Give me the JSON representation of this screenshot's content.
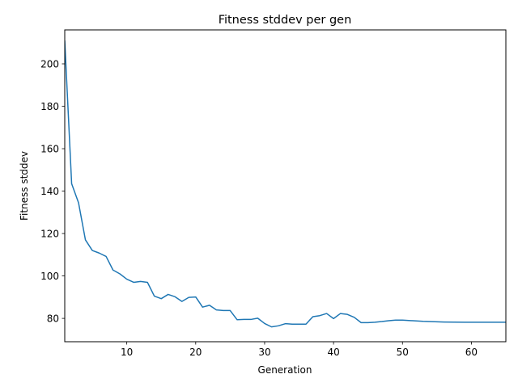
{
  "chart_data": {
    "type": "line",
    "title": "Fitness stddev per gen",
    "xlabel": "Generation",
    "ylabel": "Fitness stddev",
    "xlim": [
      1,
      65
    ],
    "ylim": [
      69,
      216
    ],
    "xticks": [
      10,
      20,
      30,
      40,
      50,
      60
    ],
    "yticks": [
      80,
      100,
      120,
      140,
      160,
      180,
      200
    ],
    "grid": false,
    "series": [
      {
        "color": "#1f77b4",
        "x": [
          1,
          2,
          3,
          4,
          5,
          6,
          7,
          8,
          9,
          10,
          11,
          12,
          13,
          14,
          15,
          16,
          17,
          18,
          19,
          20,
          21,
          22,
          23,
          24,
          25,
          26,
          27,
          28,
          29,
          30,
          31,
          32,
          33,
          34,
          35,
          36,
          37,
          38,
          39,
          40,
          41,
          42,
          43,
          44,
          45,
          46,
          47,
          48,
          49,
          50,
          53,
          56,
          59,
          62,
          65
        ],
        "y": [
          211,
          143.5,
          134.5,
          117,
          112,
          110.8,
          109.2,
          102.8,
          101,
          98.5,
          97,
          97.4,
          97,
          90.5,
          89.3,
          91.3,
          90.2,
          88,
          89.9,
          90.1,
          85.3,
          86.2,
          84,
          83.7,
          83.7,
          79.4,
          79.5,
          79.5,
          80.1,
          77.6,
          76,
          76.5,
          77.5,
          77.3,
          77.3,
          77.3,
          80.8,
          81.3,
          82.3,
          79.9,
          82.3,
          81.9,
          80.5,
          78,
          78,
          78.2,
          78.5,
          78.9,
          79.2,
          79.2,
          78.6,
          78.3,
          78.2,
          78.2,
          78.2
        ]
      }
    ]
  }
}
